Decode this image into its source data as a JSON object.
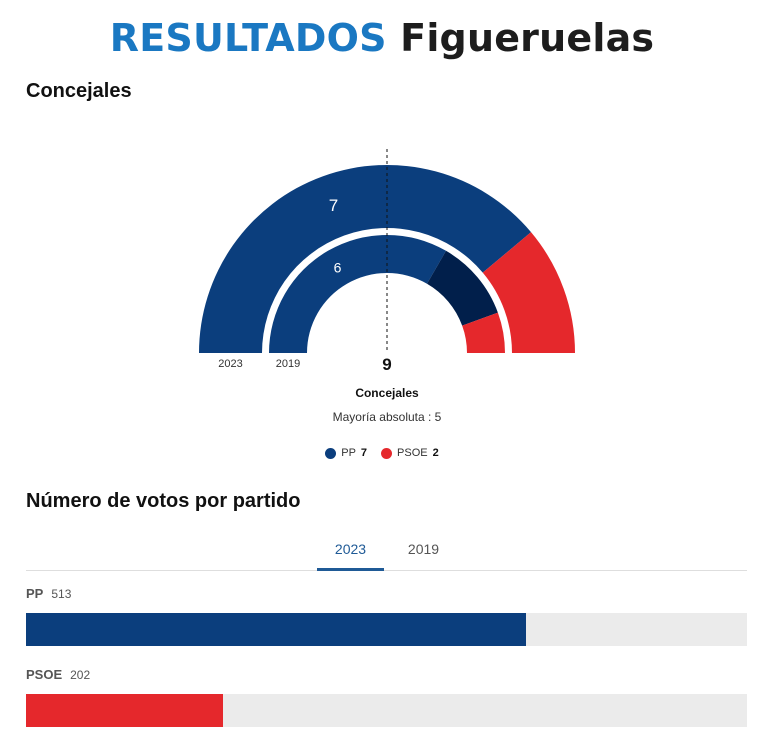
{
  "header": {
    "title_accent": "RESULTADOS",
    "title_city": "Figueruelas"
  },
  "concejales": {
    "title": "Concejales",
    "total": "9",
    "total_label": "Concejales",
    "majority_text": "Mayoría absoluta : 5"
  },
  "votos": {
    "title": "Número de votos por partido",
    "tabs": [
      {
        "label": "2023",
        "active": true
      },
      {
        "label": "2019",
        "active": false
      }
    ]
  },
  "colors": {
    "PP": "#0b3e7d",
    "PSOE": "#e5282c",
    "other_2019": "#011f4b"
  },
  "chart_data": [
    {
      "type": "hemicycle",
      "title": "Concejales",
      "total_seats": 9,
      "majority": 5,
      "rings": [
        {
          "year": "2023",
          "label": "2023",
          "segments": [
            {
              "party": "PP",
              "seats": 7,
              "color": "#0b3e7d",
              "show_label": true
            },
            {
              "party": "PSOE",
              "seats": 2,
              "color": "#e5282c",
              "show_label": false
            }
          ]
        },
        {
          "year": "2019",
          "label": "2019",
          "segments": [
            {
              "party": "PP",
              "seats": 6,
              "color": "#0b3e7d",
              "show_label": true
            },
            {
              "party": "",
              "seats": 2,
              "color": "#011f4b",
              "show_label": false
            },
            {
              "party": "PSOE",
              "seats": 1,
              "color": "#e5282c",
              "show_label": false
            }
          ]
        }
      ],
      "legend": [
        {
          "party": "PP",
          "seats": "7",
          "color": "#0b3e7d"
        },
        {
          "party": "PSOE",
          "seats": "2",
          "color": "#e5282c"
        }
      ]
    },
    {
      "type": "bar",
      "title": "Número de votos por partido",
      "year": "2023",
      "categories": [
        "PP",
        "PSOE"
      ],
      "values": [
        513,
        202
      ],
      "colors": [
        "#0b3e7d",
        "#e5282c"
      ],
      "max": 740
    }
  ]
}
